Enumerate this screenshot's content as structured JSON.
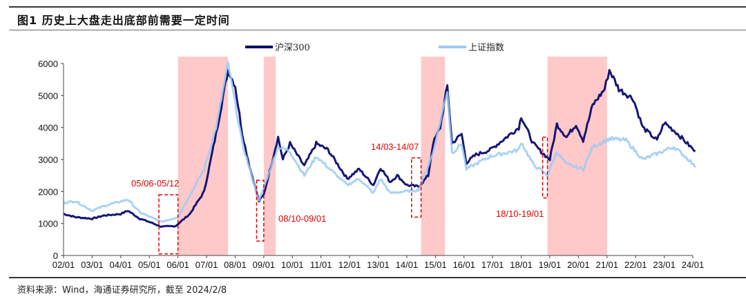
{
  "title": "图1   历史上大盘走出底部前需要一定时间",
  "source": "资料来源：Wind，海通证券研究所，截至 2024/2/8",
  "chart_data": {
    "type": "line",
    "title": "",
    "xlabel": "",
    "ylabel": "",
    "ylim": [
      0,
      6000
    ],
    "yticks": [
      "0",
      "1000",
      "2000",
      "3000",
      "4000",
      "5000",
      "6000"
    ],
    "xlim": [
      "2002-01",
      "2024-02"
    ],
    "xticks": [
      "02/01",
      "03/01",
      "04/01",
      "05/01",
      "06/01",
      "07/01",
      "08/01",
      "09/01",
      "10/01",
      "11/01",
      "12/01",
      "13/01",
      "14/01",
      "15/01",
      "16/01",
      "17/01",
      "18/01",
      "19/01",
      "20/01",
      "21/01",
      "22/01",
      "23/01",
      "24/01"
    ],
    "grid": false,
    "legend": "top",
    "series": [
      {
        "name": "沪深300",
        "color": "#0a0a6e",
        "points": [
          [
            "2002-01",
            1300
          ],
          [
            "2002-06",
            1200
          ],
          [
            "2003-01",
            1150
          ],
          [
            "2003-06",
            1250
          ],
          [
            "2004-01",
            1300
          ],
          [
            "2004-04",
            1400
          ],
          [
            "2004-09",
            1150
          ],
          [
            "2005-01",
            1050
          ],
          [
            "2005-06",
            900
          ],
          [
            "2005-12",
            920
          ],
          [
            "2006-06",
            1300
          ],
          [
            "2006-12",
            2000
          ],
          [
            "2007-05",
            3800
          ],
          [
            "2007-10",
            5800
          ],
          [
            "2008-01",
            5300
          ],
          [
            "2008-04",
            3800
          ],
          [
            "2008-07",
            2800
          ],
          [
            "2008-11",
            1700
          ],
          [
            "2009-01",
            1900
          ],
          [
            "2009-07",
            3700
          ],
          [
            "2009-09",
            3000
          ],
          [
            "2009-12",
            3500
          ],
          [
            "2010-06",
            2800
          ],
          [
            "2010-11",
            3500
          ],
          [
            "2011-04",
            3300
          ],
          [
            "2011-12",
            2400
          ],
          [
            "2012-05",
            2700
          ],
          [
            "2012-11",
            2200
          ],
          [
            "2013-02",
            2750
          ],
          [
            "2013-06",
            2300
          ],
          [
            "2013-09",
            2500
          ],
          [
            "2014-01",
            2200
          ],
          [
            "2014-06",
            2150
          ],
          [
            "2014-10",
            2500
          ],
          [
            "2014-12",
            3500
          ],
          [
            "2015-03",
            4000
          ],
          [
            "2015-06",
            5300
          ],
          [
            "2015-08",
            3500
          ],
          [
            "2015-12",
            3800
          ],
          [
            "2016-02",
            2900
          ],
          [
            "2016-06",
            3150
          ],
          [
            "2016-12",
            3300
          ],
          [
            "2017-06",
            3650
          ],
          [
            "2017-12",
            4000
          ],
          [
            "2018-01",
            4350
          ],
          [
            "2018-06",
            3500
          ],
          [
            "2018-10",
            3200
          ],
          [
            "2019-01",
            3000
          ],
          [
            "2019-04",
            4100
          ],
          [
            "2019-08",
            3700
          ],
          [
            "2019-12",
            4100
          ],
          [
            "2020-03",
            3600
          ],
          [
            "2020-07",
            4700
          ],
          [
            "2020-12",
            5200
          ],
          [
            "2021-02",
            5800
          ],
          [
            "2021-06",
            5200
          ],
          [
            "2021-12",
            4900
          ],
          [
            "2022-04",
            4000
          ],
          [
            "2022-10",
            3600
          ],
          [
            "2023-01",
            4150
          ],
          [
            "2023-06",
            3850
          ],
          [
            "2023-12",
            3400
          ],
          [
            "2024-02",
            3250
          ]
        ]
      },
      {
        "name": "上证指数",
        "color": "#9ccaf5",
        "points": [
          [
            "2002-01",
            1650
          ],
          [
            "2002-06",
            1700
          ],
          [
            "2003-01",
            1400
          ],
          [
            "2003-06",
            1550
          ],
          [
            "2004-04",
            1750
          ],
          [
            "2004-09",
            1350
          ],
          [
            "2005-06",
            1050
          ],
          [
            "2006-01",
            1200
          ],
          [
            "2006-12",
            2700
          ],
          [
            "2007-05",
            4000
          ],
          [
            "2007-10",
            6000
          ],
          [
            "2008-04",
            3500
          ],
          [
            "2008-11",
            1700
          ],
          [
            "2009-07",
            3400
          ],
          [
            "2009-12",
            3250
          ],
          [
            "2010-06",
            2500
          ],
          [
            "2010-11",
            3100
          ],
          [
            "2011-12",
            2200
          ],
          [
            "2012-05",
            2400
          ],
          [
            "2012-11",
            1950
          ],
          [
            "2013-02",
            2400
          ],
          [
            "2013-06",
            1950
          ],
          [
            "2014-06",
            2050
          ],
          [
            "2014-12",
            3200
          ],
          [
            "2015-06",
            5150
          ],
          [
            "2015-08",
            3200
          ],
          [
            "2015-12",
            3500
          ],
          [
            "2016-02",
            2700
          ],
          [
            "2016-12",
            3100
          ],
          [
            "2017-12",
            3300
          ],
          [
            "2018-01",
            3550
          ],
          [
            "2018-06",
            2850
          ],
          [
            "2018-12",
            2500
          ],
          [
            "2019-04",
            3250
          ],
          [
            "2019-08",
            2850
          ],
          [
            "2020-03",
            2700
          ],
          [
            "2020-07",
            3400
          ],
          [
            "2021-02",
            3650
          ],
          [
            "2021-09",
            3600
          ],
          [
            "2022-04",
            3000
          ],
          [
            "2023-05",
            3400
          ],
          [
            "2023-12",
            2950
          ],
          [
            "2024-02",
            2750
          ]
        ]
      }
    ],
    "shaded_periods": [
      {
        "from": "2006-01",
        "to": "2007-10",
        "color": "#ffc9c9"
      },
      {
        "from": "2009-01",
        "to": "2009-06",
        "color": "#ffc9c9"
      },
      {
        "from": "2014-07",
        "to": "2015-05",
        "color": "#ffc9c9"
      },
      {
        "from": "2018-12",
        "to": "2021-01",
        "color": "#ffc9c9"
      }
    ],
    "annotations": [
      {
        "label": "05/06-05/12",
        "from": "2005-05",
        "to": "2006-01",
        "ymin": 50,
        "ymax": 1900
      },
      {
        "label": "08/10-09/01",
        "from": "2008-10",
        "to": "2009-01",
        "ymin": 450,
        "ymax": 2350
      },
      {
        "label": "14/03-14/07",
        "from": "2014-03",
        "to": "2014-07",
        "ymin": 1200,
        "ymax": 3050
      },
      {
        "label": "18/10-19/01",
        "from": "2018-10",
        "to": "2018-12",
        "ymin": 1800,
        "ymax": 3700
      }
    ]
  }
}
